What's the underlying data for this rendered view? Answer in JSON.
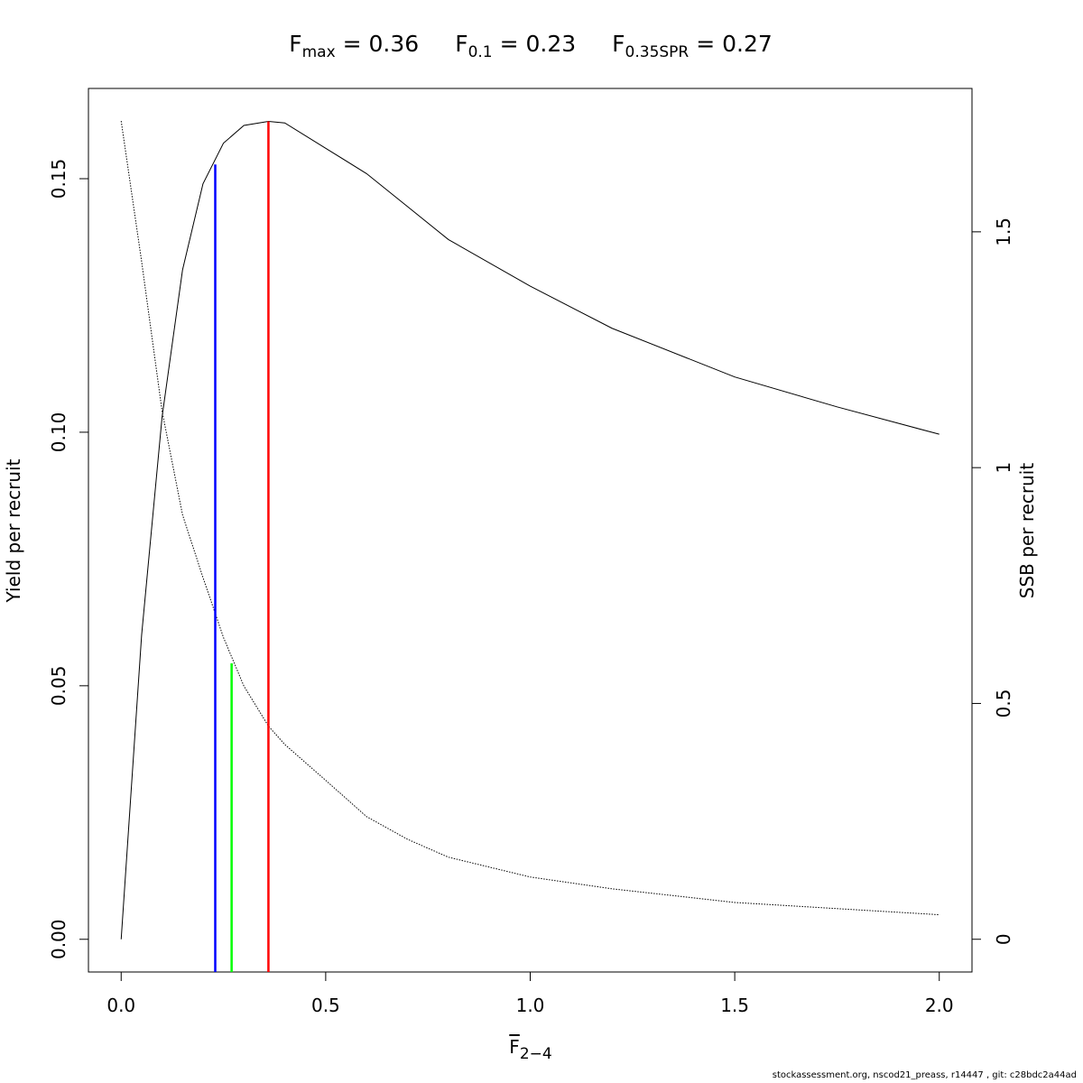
{
  "chart_data": {
    "type": "line",
    "title": [
      {
        "main": "F",
        "sub": "max",
        "rest": " = 0.36"
      },
      {
        "main": "F",
        "sub": "0.1",
        "rest": " = 0.23"
      },
      {
        "main": "F",
        "sub": "0.35SPR",
        "rest": " = 0.27"
      }
    ],
    "x_label": {
      "main": "F",
      "sub": "2−4"
    },
    "y_label": "Yield per recruit",
    "y2_label": "SSB per recruit",
    "footer": "stockassessment.org, nscod21_preass, r14447 , git: c28bdc2a44ad",
    "x": [
      0,
      0.05,
      0.1,
      0.15,
      0.2,
      0.25,
      0.3,
      0.36,
      0.4,
      0.5,
      0.6,
      0.7,
      0.8,
      1.0,
      1.2,
      1.5,
      1.75,
      2.0
    ],
    "series": [
      {
        "color": "#000000",
        "line_style": "solid",
        "axis": "y",
        "values": [
          0,
          0.06,
          0.103,
          0.132,
          0.149,
          0.157,
          0.1605,
          0.1613,
          0.161,
          0.156,
          0.151,
          0.1445,
          0.138,
          0.1288,
          0.1205,
          0.1109,
          0.105,
          0.0996
        ]
      },
      {
        "color": "#000000",
        "line_style": "dotted",
        "axis": "y2",
        "values": [
          1.735,
          1.437,
          1.12,
          0.9,
          0.767,
          0.64,
          0.537,
          0.452,
          0.413,
          0.337,
          0.26,
          0.212,
          0.174,
          0.132,
          0.107,
          0.078,
          0.065,
          0.052
        ]
      }
    ],
    "reference_lines": [
      {
        "x": 0.23,
        "y": 0.1528,
        "axis": "y",
        "color": "#0000ff"
      },
      {
        "x": 0.27,
        "y": 0.585,
        "axis": "y2",
        "color": "#00ff00"
      },
      {
        "x": 0.36,
        "y": 0.1613,
        "axis": "y",
        "color": "#ff0000"
      }
    ],
    "xlim": [
      -0.08,
      2.08
    ],
    "ylim": [
      -0.00645,
      0.1678
    ],
    "y2lim": [
      -0.0694,
      1.804
    ],
    "xticks": [
      {
        "value": 0,
        "label": "0.0"
      },
      0.5,
      {
        "value": 1,
        "label": "1.0"
      },
      1.5,
      {
        "value": 2,
        "label": "2.0"
      }
    ],
    "yticks": [
      {
        "value": 0,
        "label": "0.00"
      },
      {
        "value": 0.05,
        "label": "0.05"
      },
      {
        "value": 0.1,
        "label": "0.10"
      },
      {
        "value": 0.15,
        "label": "0.15"
      }
    ],
    "y2ticks": [
      0,
      0.5,
      1,
      1.5
    ]
  }
}
